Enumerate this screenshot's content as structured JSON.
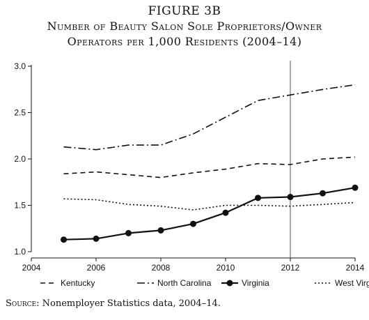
{
  "figure": {
    "label": "FIGURE 3B",
    "title_line1": "Number of Beauty Salon Sole Proprietors/Owner",
    "title_line2": "Operators per 1,000 Residents (2004–14)",
    "source_label": "Source:",
    "source_text": " Nonemployer Statistics data, 2004–14."
  },
  "chart_data": {
    "type": "line",
    "title": "Number of Beauty Salon Sole Proprietors/Owner Operators per 1,000 Residents (2004–14)",
    "xlabel": "",
    "ylabel": "",
    "xlim": [
      2004,
      2014
    ],
    "ylim": [
      1.0,
      3.0
    ],
    "xticks": [
      2004,
      2006,
      2008,
      2010,
      2012,
      2014
    ],
    "yticks": [
      1.0,
      1.5,
      2.0,
      2.5,
      3.0
    ],
    "ytick_labels": [
      "1.0",
      "1.5",
      "2.0",
      "2.5",
      "3.0"
    ],
    "grid": false,
    "legend_position": "bottom",
    "reference_line_x": 2012,
    "x": [
      2005,
      2006,
      2007,
      2008,
      2009,
      2010,
      2011,
      2012,
      2013,
      2014
    ],
    "series": [
      {
        "name": "Kentucky",
        "style": "dashed",
        "values": [
          1.84,
          1.86,
          1.83,
          1.8,
          1.85,
          1.89,
          1.95,
          1.94,
          2.0,
          2.02
        ]
      },
      {
        "name": "North Carolina",
        "style": "dash-dot",
        "values": [
          2.13,
          2.1,
          2.15,
          2.15,
          2.27,
          2.45,
          2.63,
          2.69,
          2.75,
          2.8
        ]
      },
      {
        "name": "Virginia",
        "style": "solid-markers",
        "values": [
          1.13,
          1.14,
          1.2,
          1.23,
          1.3,
          1.42,
          1.58,
          1.59,
          1.63,
          1.69
        ]
      },
      {
        "name": "West Virginia",
        "style": "dotted",
        "values": [
          1.57,
          1.56,
          1.51,
          1.49,
          1.45,
          1.5,
          1.5,
          1.49,
          1.51,
          1.53
        ]
      }
    ],
    "colors": {
      "line": "#111111",
      "reference_line": "#555555"
    }
  }
}
